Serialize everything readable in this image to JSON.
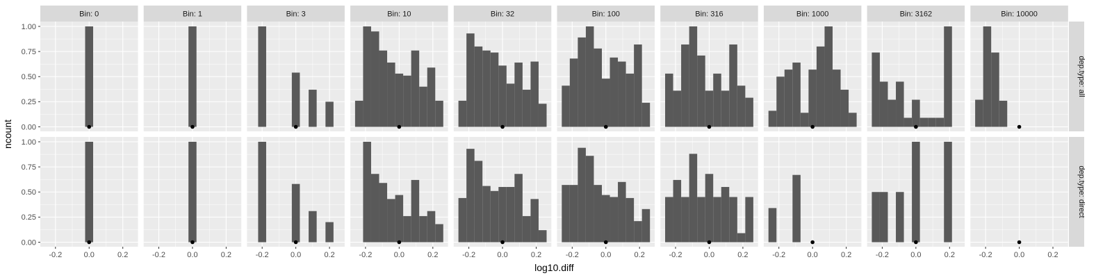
{
  "chart_data": {
    "type": "bar",
    "xlabel": "log10.diff",
    "ylabel": "ncount",
    "xlim": [
      -0.29,
      0.29
    ],
    "ylim": [
      0,
      1
    ],
    "x_ticks": [
      -0.2,
      0.0,
      0.2
    ],
    "x_tick_labels": [
      "-0.2",
      "0.0",
      "0.2"
    ],
    "y_ticks": [
      0,
      0.25,
      0.5,
      0.75,
      1.0
    ],
    "y_tick_labels": [
      "0.00",
      "0.25",
      "0.50",
      "0.75",
      "1.00"
    ],
    "grid": true,
    "bin_width": 0.0476,
    "colors": {
      "bar": "#595959",
      "panel_bg": "#ebebeb",
      "strip_bg": "#d9d9d9",
      "grid": "#ffffff",
      "point": "#000000"
    },
    "columns": [
      {
        "label": "Bin: 0"
      },
      {
        "label": "Bin: 1"
      },
      {
        "label": "Bin: 3"
      },
      {
        "label": "Bin: 10"
      },
      {
        "label": "Bin: 32"
      },
      {
        "label": "Bin: 100"
      },
      {
        "label": "Bin: 316"
      },
      {
        "label": "Bin: 1000"
      },
      {
        "label": "Bin: 3162"
      },
      {
        "label": "Bin: 10000"
      }
    ],
    "rows": [
      {
        "label": "dep.type: all",
        "panels": [
          {
            "marker_x": 0.0,
            "bars": [
              {
                "x": 0.0,
                "y": 1.0
              }
            ]
          },
          {
            "marker_x": 0.0,
            "bars": [
              {
                "x": 0.0,
                "y": 1.0
              }
            ]
          },
          {
            "marker_x": 0.0,
            "bars": [
              {
                "x": -0.2,
                "y": 1.0
              },
              {
                "x": 0.0,
                "y": 0.54
              },
              {
                "x": 0.1,
                "y": 0.37
              },
              {
                "x": 0.2,
                "y": 0.25
              }
            ]
          },
          {
            "marker_x": 0.0,
            "bars": [
              {
                "x": -0.2381,
                "y": 0.26
              },
              {
                "x": -0.1905,
                "y": 1.0
              },
              {
                "x": -0.1429,
                "y": 0.95
              },
              {
                "x": -0.0952,
                "y": 0.76
              },
              {
                "x": -0.0476,
                "y": 0.64
              },
              {
                "x": 0.0,
                "y": 0.53
              },
              {
                "x": 0.0476,
                "y": 0.51
              },
              {
                "x": 0.0952,
                "y": 0.76
              },
              {
                "x": 0.1429,
                "y": 0.4
              },
              {
                "x": 0.1905,
                "y": 0.59
              },
              {
                "x": 0.2381,
                "y": 0.26
              }
            ]
          },
          {
            "marker_x": 0.0,
            "bars": [
              {
                "x": -0.2381,
                "y": 0.26
              },
              {
                "x": -0.1905,
                "y": 0.93
              },
              {
                "x": -0.1429,
                "y": 0.8
              },
              {
                "x": -0.0952,
                "y": 0.76
              },
              {
                "x": -0.0476,
                "y": 0.74
              },
              {
                "x": 0.0,
                "y": 0.61
              },
              {
                "x": 0.0476,
                "y": 0.43
              },
              {
                "x": 0.0952,
                "y": 0.64
              },
              {
                "x": 0.1429,
                "y": 0.37
              },
              {
                "x": 0.1905,
                "y": 0.65
              },
              {
                "x": 0.2381,
                "y": 0.23
              }
            ]
          },
          {
            "marker_x": 0.0,
            "bars": [
              {
                "x": -0.2381,
                "y": 0.41
              },
              {
                "x": -0.1905,
                "y": 0.68
              },
              {
                "x": -0.1429,
                "y": 0.89
              },
              {
                "x": -0.0952,
                "y": 1.0
              },
              {
                "x": -0.0476,
                "y": 0.78
              },
              {
                "x": 0.0,
                "y": 0.48
              },
              {
                "x": 0.0476,
                "y": 0.69
              },
              {
                "x": 0.0952,
                "y": 0.65
              },
              {
                "x": 0.1429,
                "y": 0.53
              },
              {
                "x": 0.1905,
                "y": 0.82
              },
              {
                "x": 0.2381,
                "y": 0.24
              }
            ]
          },
          {
            "marker_x": 0.0,
            "bars": [
              {
                "x": -0.2381,
                "y": 0.53
              },
              {
                "x": -0.1905,
                "y": 0.36
              },
              {
                "x": -0.1429,
                "y": 0.82
              },
              {
                "x": -0.0952,
                "y": 1.0
              },
              {
                "x": -0.0476,
                "y": 0.71
              },
              {
                "x": 0.0,
                "y": 0.36
              },
              {
                "x": 0.0476,
                "y": 0.53
              },
              {
                "x": 0.0952,
                "y": 0.36
              },
              {
                "x": 0.1429,
                "y": 0.82
              },
              {
                "x": 0.1905,
                "y": 0.41
              },
              {
                "x": 0.2381,
                "y": 0.29
              }
            ]
          },
          {
            "marker_x": 0.0,
            "bars": [
              {
                "x": -0.2381,
                "y": 0.16
              },
              {
                "x": -0.1905,
                "y": 0.5
              },
              {
                "x": -0.1429,
                "y": 0.57
              },
              {
                "x": -0.0952,
                "y": 0.64
              },
              {
                "x": -0.0476,
                "y": 0.14
              },
              {
                "x": 0.0,
                "y": 0.57
              },
              {
                "x": 0.0476,
                "y": 0.8
              },
              {
                "x": 0.0952,
                "y": 1.0
              },
              {
                "x": 0.1429,
                "y": 0.57
              },
              {
                "x": 0.1905,
                "y": 0.37
              },
              {
                "x": 0.2381,
                "y": 0.14
              }
            ]
          },
          {
            "marker_x": 0.0,
            "bars": [
              {
                "x": -0.2381,
                "y": 0.74
              },
              {
                "x": -0.1905,
                "y": 0.45
              },
              {
                "x": -0.1429,
                "y": 0.27
              },
              {
                "x": -0.0952,
                "y": 0.45
              },
              {
                "x": -0.0476,
                "y": 0.09
              },
              {
                "x": 0.0,
                "y": 0.27
              },
              {
                "x": 0.0476,
                "y": 0.09
              },
              {
                "x": 0.0952,
                "y": 0.09
              },
              {
                "x": 0.1429,
                "y": 0.09
              },
              {
                "x": 0.1905,
                "y": 1.0
              },
              {
                "x": 0.2381,
                "y": 0.0
              }
            ]
          },
          {
            "marker_x": 0.0,
            "bars": [
              {
                "x": -0.2381,
                "y": 0.27
              },
              {
                "x": -0.1905,
                "y": 1.0
              },
              {
                "x": -0.1429,
                "y": 0.74
              },
              {
                "x": -0.0952,
                "y": 0.26
              }
            ]
          }
        ]
      },
      {
        "label": "dep.type: direct",
        "panels": [
          {
            "marker_x": 0.0,
            "bars": [
              {
                "x": 0.0,
                "y": 1.0
              }
            ]
          },
          {
            "marker_x": 0.0,
            "bars": [
              {
                "x": 0.0,
                "y": 1.0
              }
            ]
          },
          {
            "marker_x": 0.0,
            "bars": [
              {
                "x": -0.2,
                "y": 1.0
              },
              {
                "x": 0.0,
                "y": 0.58
              },
              {
                "x": 0.1,
                "y": 0.31
              },
              {
                "x": 0.2,
                "y": 0.2
              }
            ]
          },
          {
            "marker_x": 0.0,
            "bars": [
              {
                "x": -0.2381,
                "y": 0.0
              },
              {
                "x": -0.1905,
                "y": 1.0
              },
              {
                "x": -0.1429,
                "y": 0.68
              },
              {
                "x": -0.0952,
                "y": 0.59
              },
              {
                "x": -0.0476,
                "y": 0.43
              },
              {
                "x": 0.0,
                "y": 0.47
              },
              {
                "x": 0.0476,
                "y": 0.26
              },
              {
                "x": 0.0952,
                "y": 0.62
              },
              {
                "x": 0.1429,
                "y": 0.26
              },
              {
                "x": 0.1905,
                "y": 0.31
              },
              {
                "x": 0.2381,
                "y": 0.18
              }
            ]
          },
          {
            "marker_x": 0.0,
            "bars": [
              {
                "x": -0.2381,
                "y": 0.44
              },
              {
                "x": -0.1905,
                "y": 0.93
              },
              {
                "x": -0.1429,
                "y": 0.81
              },
              {
                "x": -0.0952,
                "y": 0.56
              },
              {
                "x": -0.0476,
                "y": 0.51
              },
              {
                "x": 0.0,
                "y": 0.55
              },
              {
                "x": 0.0476,
                "y": 0.55
              },
              {
                "x": 0.0952,
                "y": 0.68
              },
              {
                "x": 0.1429,
                "y": 0.26
              },
              {
                "x": 0.1905,
                "y": 0.43
              },
              {
                "x": 0.2381,
                "y": 0.12
              }
            ]
          },
          {
            "marker_x": 0.0,
            "bars": [
              {
                "x": -0.2381,
                "y": 0.57
              },
              {
                "x": -0.1905,
                "y": 0.57
              },
              {
                "x": -0.1429,
                "y": 0.94
              },
              {
                "x": -0.0952,
                "y": 0.86
              },
              {
                "x": -0.0476,
                "y": 0.57
              },
              {
                "x": 0.0,
                "y": 0.47
              },
              {
                "x": 0.0476,
                "y": 0.45
              },
              {
                "x": 0.0952,
                "y": 0.6
              },
              {
                "x": 0.1429,
                "y": 0.44
              },
              {
                "x": 0.1905,
                "y": 0.21
              },
              {
                "x": 0.2381,
                "y": 0.33
              }
            ]
          },
          {
            "marker_x": 0.0,
            "bars": [
              {
                "x": -0.2381,
                "y": 0.45
              },
              {
                "x": -0.1905,
                "y": 0.62
              },
              {
                "x": -0.1429,
                "y": 0.45
              },
              {
                "x": -0.0952,
                "y": 0.88
              },
              {
                "x": -0.0476,
                "y": 0.45
              },
              {
                "x": 0.0,
                "y": 0.68
              },
              {
                "x": 0.0476,
                "y": 0.45
              },
              {
                "x": 0.0952,
                "y": 0.55
              },
              {
                "x": 0.1429,
                "y": 0.45
              },
              {
                "x": 0.1905,
                "y": 0.09
              },
              {
                "x": 0.2381,
                "y": 0.45
              }
            ]
          },
          {
            "marker_x": 0.0,
            "bars": [
              {
                "x": -0.2381,
                "y": 0.34
              },
              {
                "x": -0.1905,
                "y": 0.0
              },
              {
                "x": -0.1429,
                "y": 0.0
              },
              {
                "x": -0.0952,
                "y": 0.67
              },
              {
                "x": -0.0476,
                "y": 0.0
              },
              {
                "x": 0.0,
                "y": 0.0
              },
              {
                "x": 0.0476,
                "y": 0.0
              },
              {
                "x": 0.0952,
                "y": 0.0
              },
              {
                "x": 0.1429,
                "y": 0.0
              },
              {
                "x": 0.1905,
                "y": 0.0
              },
              {
                "x": 0.2381,
                "y": 0.0
              }
            ]
          },
          {
            "marker_x": 0.0,
            "bars": [
              {
                "x": -0.2381,
                "y": 0.5
              },
              {
                "x": -0.1905,
                "y": 0.5
              },
              {
                "x": -0.0952,
                "y": 0.5
              },
              {
                "x": 0.0,
                "y": 1.0
              },
              {
                "x": 0.1905,
                "y": 1.0
              }
            ]
          },
          {
            "marker_x": 0.0,
            "bars": []
          }
        ]
      }
    ]
  }
}
